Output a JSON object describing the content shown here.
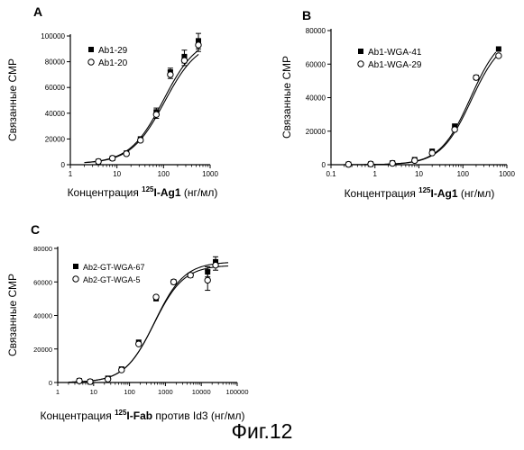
{
  "figure": {
    "caption": "Фиг.12"
  },
  "chart_data": [
    {
      "type": "scatter",
      "panel_label": "A",
      "title": "",
      "xlabel_pre": "Концентрация ",
      "xlabel_sup": "125",
      "xlabel_bold": "I-Ag1",
      "xlabel_post": " (нг/мл)",
      "ylabel": "Связанные СМР",
      "x_scale": "log",
      "xlim": [
        1,
        1000
      ],
      "ylim": [
        0,
        100000
      ],
      "x_ticks": [
        1,
        10,
        100,
        1000
      ],
      "x_tick_labels": [
        "1",
        "10",
        "100",
        "1000"
      ],
      "y_ticks": [
        0,
        20000,
        40000,
        60000,
        80000,
        100000
      ],
      "y_tick_labels": [
        "0",
        "20000",
        "40000",
        "60000",
        "80000",
        "100000"
      ],
      "legend_position": "top-left",
      "grid": false,
      "series": [
        {
          "name": "Ab1-29",
          "marker": "square-filled",
          "x": [
            4,
            8,
            16,
            32,
            70,
            140,
            280,
            560
          ],
          "y": [
            2500,
            5000,
            9000,
            20000,
            41000,
            72000,
            84000,
            96000
          ],
          "err": [
            0,
            0,
            0,
            0,
            3000,
            3000,
            5000,
            6000
          ]
        },
        {
          "name": "Ab1-20",
          "marker": "circle-open",
          "x": [
            4,
            8,
            16,
            32,
            70,
            140,
            280,
            560
          ],
          "y": [
            2500,
            5000,
            8500,
            19000,
            39000,
            70000,
            81000,
            93000
          ],
          "err": [
            0,
            0,
            0,
            0,
            3000,
            3000,
            4000,
            5000
          ]
        }
      ],
      "curves": [
        {
          "bottom": 800,
          "top": 100000,
          "ec50": 100,
          "hill": 1.2
        },
        {
          "bottom": 800,
          "top": 97000,
          "ec50": 105,
          "hill": 1.2
        }
      ]
    },
    {
      "type": "scatter",
      "panel_label": "B",
      "title": "",
      "xlabel_pre": "Концентрация ",
      "xlabel_sup": "125",
      "xlabel_bold": "I-Ag1",
      "xlabel_post": " (нг/мл)",
      "ylabel": "Связанные СМР",
      "x_scale": "log",
      "xlim": [
        0.1,
        1000
      ],
      "ylim": [
        0,
        80000
      ],
      "x_ticks": [
        0.1,
        1,
        10,
        100,
        1000
      ],
      "x_tick_labels": [
        "0.1",
        "1",
        "10",
        "100",
        "1000"
      ],
      "y_ticks": [
        0,
        20000,
        40000,
        60000,
        80000
      ],
      "y_tick_labels": [
        "0",
        "20000",
        "40000",
        "60000",
        "80000"
      ],
      "legend_position": "top-left",
      "grid": false,
      "series": [
        {
          "name": "Ab1-WGA-41",
          "marker": "square-filled",
          "x": [
            0.25,
            0.8,
            2.5,
            8,
            20,
            65,
            200,
            650
          ],
          "y": [
            200,
            400,
            1000,
            3000,
            8000,
            23000,
            52000,
            69000
          ],
          "err": [
            0,
            0,
            0,
            0,
            0,
            0,
            0,
            0
          ]
        },
        {
          "name": "Ab1-WGA-29",
          "marker": "circle-open",
          "x": [
            0.25,
            0.8,
            2.5,
            8,
            20,
            65,
            200,
            650
          ],
          "y": [
            200,
            400,
            800,
            2500,
            7000,
            21000,
            52000,
            65000
          ],
          "err": [
            0,
            0,
            0,
            0,
            0,
            0,
            0,
            0
          ]
        }
      ],
      "curves": [
        {
          "bottom": 0,
          "top": 80000,
          "ec50": 150,
          "hill": 1.25
        },
        {
          "bottom": 0,
          "top": 77000,
          "ec50": 155,
          "hill": 1.25
        }
      ]
    },
    {
      "type": "scatter",
      "panel_label": "C",
      "title": "",
      "xlabel_pre": "Концентрация ",
      "xlabel_sup": "125",
      "xlabel_bold": "I-Fab",
      "xlabel_post": " против Id3 (нг/мл)",
      "ylabel": "Связанные СМР",
      "x_scale": "log",
      "xlim": [
        1,
        100000
      ],
      "ylim": [
        0,
        80000
      ],
      "x_ticks": [
        1,
        10,
        100,
        1000,
        10000,
        100000
      ],
      "x_tick_labels": [
        "1",
        "10",
        "100",
        "1000",
        "10000",
        "100000"
      ],
      "y_ticks": [
        0,
        20000,
        40000,
        60000,
        80000
      ],
      "y_tick_labels": [
        "0",
        "20000",
        "40000",
        "60000",
        "80000"
      ],
      "legend_position": "top-left",
      "grid": false,
      "series": [
        {
          "name": "Ab2-GT-WGA-67",
          "marker": "square-filled",
          "x": [
            4,
            8,
            25,
            60,
            180,
            550,
            1700,
            5000,
            15000,
            25000
          ],
          "y": [
            1000,
            500,
            2500,
            8000,
            24000,
            50000,
            60000,
            64000,
            66000,
            72000
          ],
          "err": [
            0,
            0,
            0,
            0,
            0,
            0,
            0,
            0,
            3000,
            3000
          ]
        },
        {
          "name": "Ab2-GT-WGA-5",
          "marker": "circle-open",
          "x": [
            4,
            8,
            25,
            60,
            180,
            550,
            1700,
            5000,
            15000,
            25000
          ],
          "y": [
            1000,
            500,
            2000,
            7500,
            23000,
            51000,
            60000,
            64000,
            61000,
            70000
          ],
          "err": [
            0,
            0,
            0,
            0,
            0,
            0,
            0,
            0,
            6000,
            3000
          ]
        }
      ],
      "curves": [
        {
          "bottom": 0,
          "top": 72000,
          "ec50": 500,
          "hill": 1.05
        },
        {
          "bottom": 0,
          "top": 70000,
          "ec50": 480,
          "hill": 1.05
        }
      ]
    }
  ]
}
